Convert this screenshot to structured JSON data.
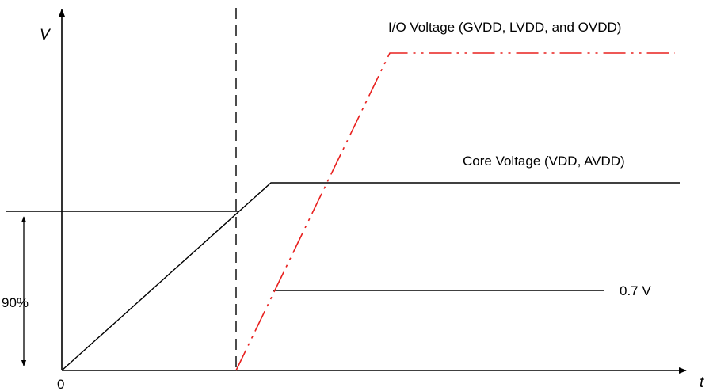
{
  "axes": {
    "y_label": "V",
    "x_label": "t",
    "origin_label": "0"
  },
  "labels": {
    "io_voltage": "I/O Voltage (GVDD, LVDD, and OVDD)",
    "core_voltage": "Core Voltage (VDD, AVDD)",
    "threshold": "0.7 V",
    "percent": "90%"
  },
  "colors": {
    "io_trace": "#e8201e",
    "core_trace": "#000000",
    "axis": "#000000"
  }
}
